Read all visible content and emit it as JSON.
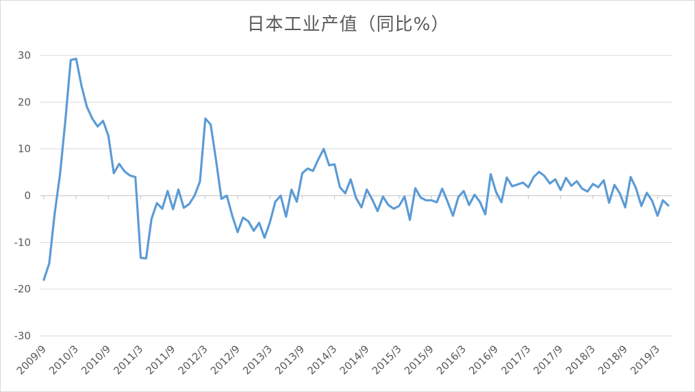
{
  "chart_data": {
    "type": "line",
    "title": "日本工业产值（同比%）",
    "xlabel": "",
    "ylabel": "",
    "ylim": [
      -30,
      30
    ],
    "yticks": [
      30,
      20,
      10,
      0,
      -10,
      -20,
      -30
    ],
    "ytick_labels": [
      "30",
      "20",
      "10",
      "0",
      "-10",
      "-20",
      "-30"
    ],
    "xtick_labels": [
      "2009/9",
      "2010/3",
      "2010/9",
      "2011/3",
      "2011/9",
      "2012/3",
      "2012/9",
      "2013/3",
      "2013/9",
      "2014/3",
      "2014/9",
      "2015/3",
      "2015/9",
      "2016/3",
      "2016/9",
      "2017/3",
      "2017/9",
      "2018/3",
      "2018/9",
      "2019/3"
    ],
    "grid": true,
    "legend": "none",
    "colors": {
      "line": "#5b9bd5",
      "grid": "#d9d9d9",
      "axis": "#bfbfbf",
      "text": "#595959"
    },
    "series": [
      {
        "values": [
          -18,
          -14.5,
          -4,
          4.5,
          16,
          29,
          29.3,
          23.5,
          19,
          16.5,
          14.8,
          16,
          12.8,
          4.8,
          6.8,
          5.2,
          4.3,
          4,
          -13.3,
          -13.4,
          -5,
          -1.6,
          -2.8,
          1,
          -2.9,
          1.3,
          -2.6,
          -1.8,
          0,
          3,
          16.5,
          15.2,
          7.5,
          -0.7,
          0,
          -4.3,
          -7.8,
          -4.7,
          -5.5,
          -7.5,
          -5.8,
          -9,
          -5.7,
          -1.3,
          0,
          -4.5,
          1.3,
          -1.3,
          4.8,
          5.8,
          5.3,
          7.8,
          10,
          6.5,
          6.7,
          1.8,
          0.5,
          3.5,
          -0.5,
          -2.5,
          1.3,
          -0.8,
          -3.3,
          -0.2,
          -2,
          -2.8,
          -2.2,
          -0.2,
          -5.2,
          1.6,
          -0.4,
          -1,
          -1,
          -1.4,
          1.5,
          -1.3,
          -4.3,
          -0.3,
          1,
          -2,
          0.2,
          -1.3,
          -4,
          4.6,
          0.8,
          -1.4,
          3.9,
          2,
          2.4,
          2.8,
          1.8,
          4,
          5.1,
          4.2,
          2.6,
          3.5,
          1.2,
          3.8,
          2.1,
          3.1,
          1.5,
          0.9,
          2.5,
          1.8,
          3.3,
          -1.5,
          2.3,
          0.5,
          -2.5,
          4,
          1.6,
          -2.2,
          0.6,
          -1.1,
          -4.3,
          -1,
          -2.1
        ]
      }
    ]
  }
}
